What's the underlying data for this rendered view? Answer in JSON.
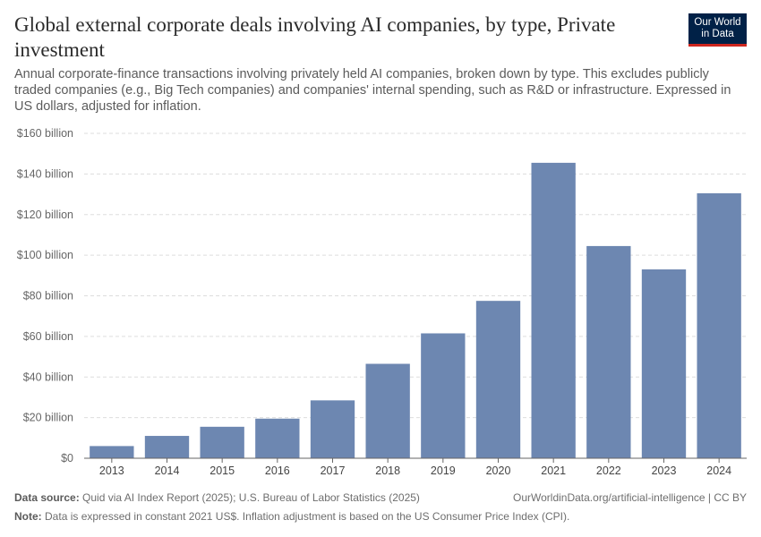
{
  "header": {
    "title": "Global external corporate deals involving AI companies, by type, Private investment",
    "subtitle": "Annual corporate-finance transactions involving privately held AI companies, broken down by type. This excludes publicly traded companies (e.g., Big Tech companies) and companies' internal spending, such as R&D or infrastructure. Expressed in US dollars, adjusted for inflation.",
    "logo_line1": "Our World",
    "logo_line2": "in Data"
  },
  "colors": {
    "bar": "#6d87b1",
    "grid": "#dddddd",
    "axis": "#666666",
    "text": "#666666"
  },
  "chart_data": {
    "type": "bar",
    "categories": [
      "2013",
      "2014",
      "2015",
      "2016",
      "2017",
      "2018",
      "2019",
      "2020",
      "2021",
      "2022",
      "2023",
      "2024"
    ],
    "values": [
      6,
      11,
      15.5,
      19.5,
      28.5,
      46.5,
      61.5,
      77.5,
      145.5,
      104.5,
      93,
      130.5
    ],
    "ylim": [
      0,
      160
    ],
    "yticks": [
      0,
      20,
      40,
      60,
      80,
      100,
      120,
      140,
      160
    ],
    "ytick_labels": [
      "$0",
      "$20 billion",
      "$40 billion",
      "$60 billion",
      "$80 billion",
      "$100 billion",
      "$120 billion",
      "$140 billion",
      "$160 billion"
    ],
    "xlabel": "",
    "ylabel": "",
    "grid": true
  },
  "footer": {
    "source_label": "Data source:",
    "source_text": "Quid via AI Index Report (2025); U.S. Bureau of Labor Statistics (2025)",
    "url": "OurWorldinData.org/artificial-intelligence | CC BY",
    "note_label": "Note:",
    "note_text": "Data is expressed in constant 2021 US$. Inflation adjustment is based on the US Consumer Price Index (CPI)."
  }
}
